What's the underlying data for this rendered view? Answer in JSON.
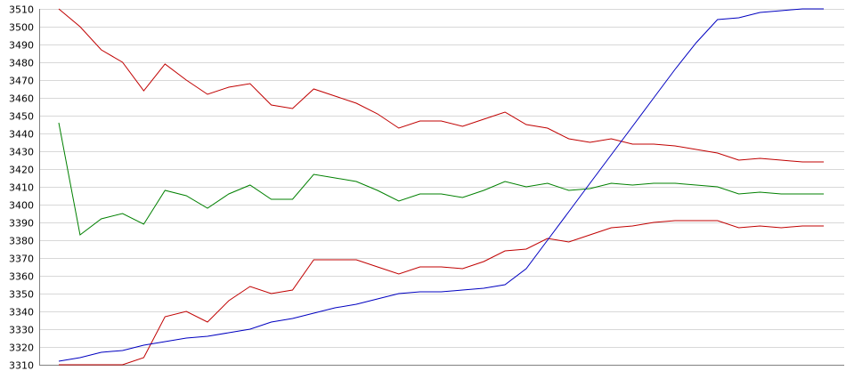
{
  "chart_data": {
    "type": "line",
    "title": "",
    "xlabel": "",
    "ylabel": "",
    "ylim": [
      3310,
      3510
    ],
    "yticks": [
      3310,
      3320,
      3330,
      3340,
      3350,
      3360,
      3370,
      3380,
      3390,
      3400,
      3410,
      3420,
      3430,
      3440,
      3450,
      3460,
      3470,
      3480,
      3490,
      3500,
      3510
    ],
    "grid": true,
    "legend": "none",
    "x": [
      0,
      1,
      2,
      3,
      4,
      5,
      6,
      7,
      8,
      9,
      10,
      11,
      12,
      13,
      14,
      15,
      16,
      17,
      18,
      19,
      20,
      21,
      22,
      23,
      24,
      25,
      26,
      27,
      28,
      29,
      30,
      31,
      32,
      33,
      34,
      35,
      36
    ],
    "series": [
      {
        "color": "#c00000",
        "values": [
          3510,
          3500,
          3487,
          3480,
          3464,
          3479,
          3470,
          3462,
          3466,
          3468,
          3456,
          3454,
          3465,
          3461,
          3457,
          3451,
          3443,
          3447,
          3447,
          3444,
          3448,
          3452,
          3445,
          3443,
          3437,
          3435,
          3437,
          3434,
          3434,
          3433,
          3431,
          3429,
          3425,
          3426,
          3425,
          3424,
          3424
        ]
      },
      {
        "color": "#008000",
        "values": [
          3446,
          3383,
          3392,
          3395,
          3389,
          3408,
          3405,
          3398,
          3406,
          3411,
          3403,
          3403,
          3417,
          3415,
          3413,
          3408,
          3402,
          3406,
          3406,
          3404,
          3408,
          3413,
          3410,
          3412,
          3408,
          3409,
          3412,
          3411,
          3412,
          3412,
          3411,
          3410,
          3406,
          3407,
          3406,
          3406,
          3406
        ]
      },
      {
        "color": "#c00000",
        "values": [
          3310,
          3310,
          3310,
          3310,
          3314,
          3337,
          3340,
          3334,
          3346,
          3354,
          3350,
          3352,
          3369,
          3369,
          3369,
          3365,
          3361,
          3365,
          3365,
          3364,
          3368,
          3374,
          3375,
          3381,
          3379,
          3383,
          3387,
          3388,
          3390,
          3391,
          3391,
          3391,
          3387,
          3388,
          3387,
          3388,
          3388
        ]
      },
      {
        "color": "#0000c0",
        "values": [
          3312,
          3314,
          3317,
          3318,
          3321,
          3323,
          3325,
          3326,
          3328,
          3330,
          3334,
          3336,
          3339,
          3342,
          3344,
          3347,
          3350,
          3351,
          3351,
          3352,
          3353,
          3355,
          3364,
          3380,
          3396,
          3412,
          3428,
          3444,
          3460,
          3476,
          3491,
          3504,
          3505,
          3508,
          3509,
          3510,
          3510
        ]
      }
    ]
  }
}
